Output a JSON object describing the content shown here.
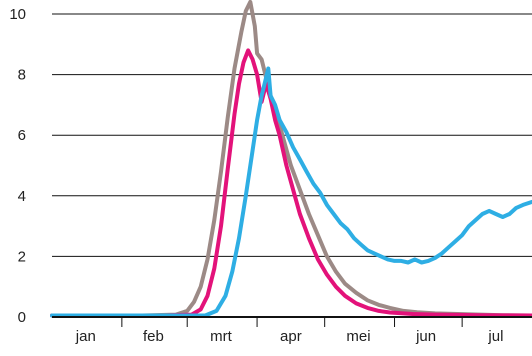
{
  "chart_data": {
    "type": "line",
    "title": "",
    "xlabel": "",
    "ylabel": "",
    "ylim": [
      0,
      10
    ],
    "yticks": [
      0,
      2,
      4,
      6,
      8,
      10
    ],
    "ytick_labels": [
      "0",
      "2",
      "4",
      "6",
      "8",
      "10"
    ],
    "grid": true,
    "legend": "none",
    "x_unit": "days since 1 January",
    "xlim": [
      0,
      213
    ],
    "months": [
      {
        "label": "jan",
        "start": 0,
        "mid": 15
      },
      {
        "label": "feb",
        "start": 31,
        "mid": 45
      },
      {
        "label": "mrt",
        "start": 60,
        "mid": 75
      },
      {
        "label": "apr",
        "start": 91,
        "mid": 106
      },
      {
        "label": "mei",
        "start": 121,
        "mid": 136
      },
      {
        "label": "jun",
        "start": 152,
        "mid": 166
      },
      {
        "label": "jul",
        "start": 182,
        "mid": 197
      }
    ],
    "series": [
      {
        "color": "#9c8a86",
        "points": [
          [
            0,
            0.05
          ],
          [
            40,
            0.05
          ],
          [
            55,
            0.08
          ],
          [
            60,
            0.2
          ],
          [
            63,
            0.5
          ],
          [
            66,
            1.0
          ],
          [
            69,
            1.9
          ],
          [
            72,
            3.2
          ],
          [
            75,
            4.8
          ],
          [
            78,
            6.6
          ],
          [
            81,
            8.2
          ],
          [
            84,
            9.4
          ],
          [
            86,
            10.1
          ],
          [
            88,
            10.4
          ],
          [
            90,
            9.6
          ],
          [
            91,
            8.7
          ],
          [
            93,
            8.5
          ],
          [
            95,
            7.9
          ],
          [
            97,
            7.3
          ],
          [
            100,
            6.6
          ],
          [
            103,
            5.8
          ],
          [
            106,
            5.0
          ],
          [
            110,
            4.2
          ],
          [
            114,
            3.4
          ],
          [
            118,
            2.7
          ],
          [
            122,
            2.0
          ],
          [
            126,
            1.5
          ],
          [
            130,
            1.1
          ],
          [
            135,
            0.8
          ],
          [
            140,
            0.55
          ],
          [
            145,
            0.4
          ],
          [
            150,
            0.3
          ],
          [
            156,
            0.2
          ],
          [
            162,
            0.16
          ],
          [
            170,
            0.12
          ],
          [
            180,
            0.1
          ],
          [
            190,
            0.08
          ],
          [
            200,
            0.06
          ],
          [
            213,
            0.05
          ]
        ]
      },
      {
        "color": "#e3127a",
        "points": [
          [
            0,
            0.05
          ],
          [
            50,
            0.05
          ],
          [
            62,
            0.08
          ],
          [
            66,
            0.25
          ],
          [
            69,
            0.7
          ],
          [
            72,
            1.6
          ],
          [
            75,
            3.0
          ],
          [
            78,
            4.9
          ],
          [
            81,
            6.7
          ],
          [
            83,
            7.7
          ],
          [
            85,
            8.4
          ],
          [
            87,
            8.8
          ],
          [
            89,
            8.5
          ],
          [
            91,
            8.0
          ],
          [
            93,
            7.1
          ],
          [
            95,
            7.7
          ],
          [
            97,
            7.2
          ],
          [
            99,
            6.5
          ],
          [
            101,
            6.0
          ],
          [
            104,
            5.0
          ],
          [
            107,
            4.2
          ],
          [
            110,
            3.4
          ],
          [
            114,
            2.6
          ],
          [
            118,
            1.9
          ],
          [
            122,
            1.4
          ],
          [
            126,
            1.0
          ],
          [
            130,
            0.7
          ],
          [
            135,
            0.45
          ],
          [
            140,
            0.3
          ],
          [
            145,
            0.2
          ],
          [
            150,
            0.15
          ],
          [
            160,
            0.1
          ],
          [
            170,
            0.08
          ],
          [
            180,
            0.07
          ],
          [
            190,
            0.06
          ],
          [
            213,
            0.05
          ]
        ]
      },
      {
        "color": "#2eaee4",
        "points": [
          [
            0,
            0.05
          ],
          [
            68,
            0.05
          ],
          [
            73,
            0.2
          ],
          [
            77,
            0.7
          ],
          [
            80,
            1.5
          ],
          [
            83,
            2.6
          ],
          [
            86,
            4.0
          ],
          [
            89,
            5.5
          ],
          [
            91,
            6.5
          ],
          [
            93,
            7.3
          ],
          [
            95,
            7.9
          ],
          [
            96,
            8.2
          ],
          [
            97,
            7.3
          ],
          [
            99,
            7.0
          ],
          [
            101,
            6.5
          ],
          [
            104,
            6.1
          ],
          [
            107,
            5.6
          ],
          [
            110,
            5.2
          ],
          [
            113,
            4.8
          ],
          [
            116,
            4.4
          ],
          [
            119,
            4.1
          ],
          [
            122,
            3.7
          ],
          [
            125,
            3.4
          ],
          [
            128,
            3.1
          ],
          [
            131,
            2.9
          ],
          [
            134,
            2.6
          ],
          [
            137,
            2.4
          ],
          [
            140,
            2.2
          ],
          [
            143,
            2.1
          ],
          [
            146,
            2.0
          ],
          [
            149,
            1.9
          ],
          [
            152,
            1.85
          ],
          [
            155,
            1.85
          ],
          [
            158,
            1.8
          ],
          [
            161,
            1.9
          ],
          [
            164,
            1.8
          ],
          [
            167,
            1.85
          ],
          [
            170,
            1.95
          ],
          [
            173,
            2.1
          ],
          [
            176,
            2.3
          ],
          [
            179,
            2.5
          ],
          [
            182,
            2.7
          ],
          [
            185,
            3.0
          ],
          [
            188,
            3.2
          ],
          [
            191,
            3.4
          ],
          [
            194,
            3.5
          ],
          [
            197,
            3.4
          ],
          [
            200,
            3.3
          ],
          [
            203,
            3.4
          ],
          [
            206,
            3.6
          ],
          [
            209,
            3.7
          ],
          [
            213,
            3.8
          ]
        ]
      }
    ]
  }
}
